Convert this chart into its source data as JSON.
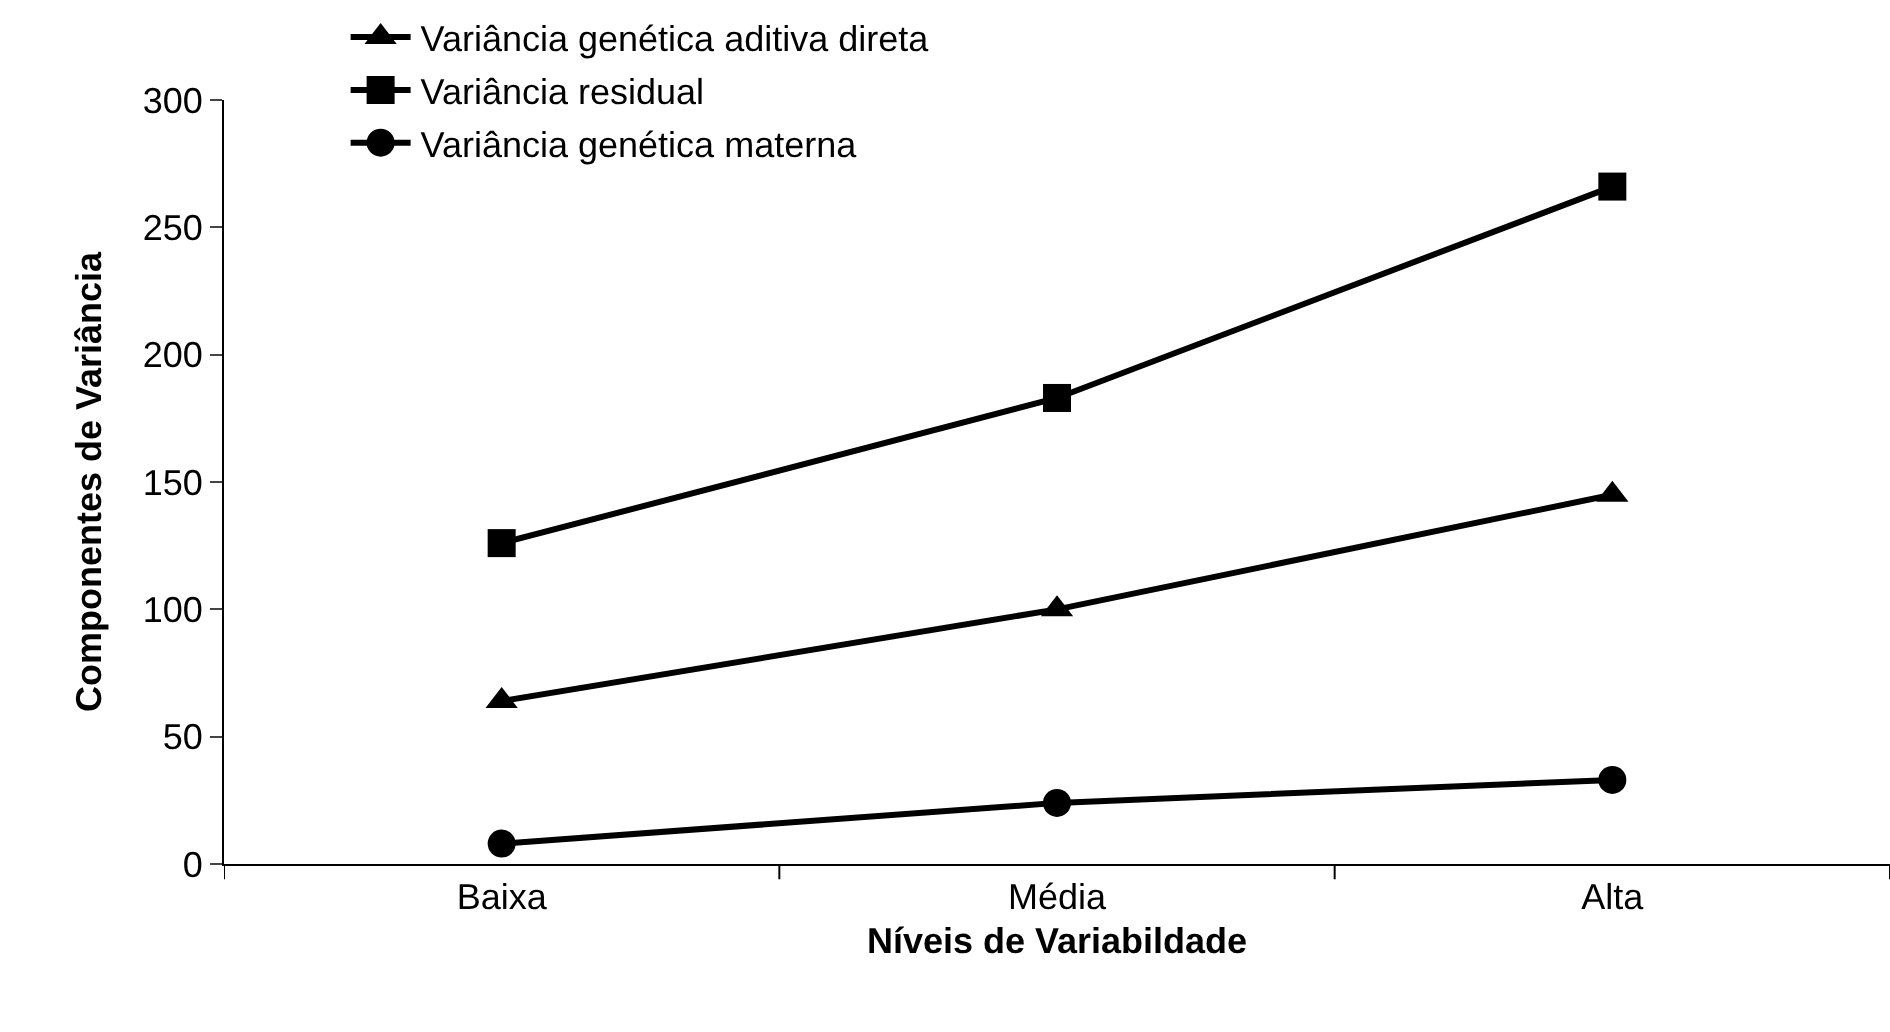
{
  "chart_data": {
    "type": "line",
    "xlabel": "Níveis de Variabildade",
    "ylabel": "Componentes de Variância",
    "categories": [
      "Baixa",
      "Média",
      "Alta"
    ],
    "series": [
      {
        "name": "Variância genética aditiva direta",
        "color": "#000000",
        "marker": "triangle",
        "values": [
          64,
          100,
          145
        ]
      },
      {
        "name": "Variância residual",
        "color": "#000000",
        "marker": "square",
        "values": [
          126,
          183,
          266
        ]
      },
      {
        "name": "Variância genética materna",
        "color": "#000000",
        "marker": "circle",
        "values": [
          8,
          24,
          33
        ]
      }
    ],
    "ylim": [
      0,
      300
    ],
    "yticks": [
      0,
      50,
      100,
      150,
      200,
      250,
      300
    ],
    "legend": "top left",
    "line_style": "solid"
  }
}
